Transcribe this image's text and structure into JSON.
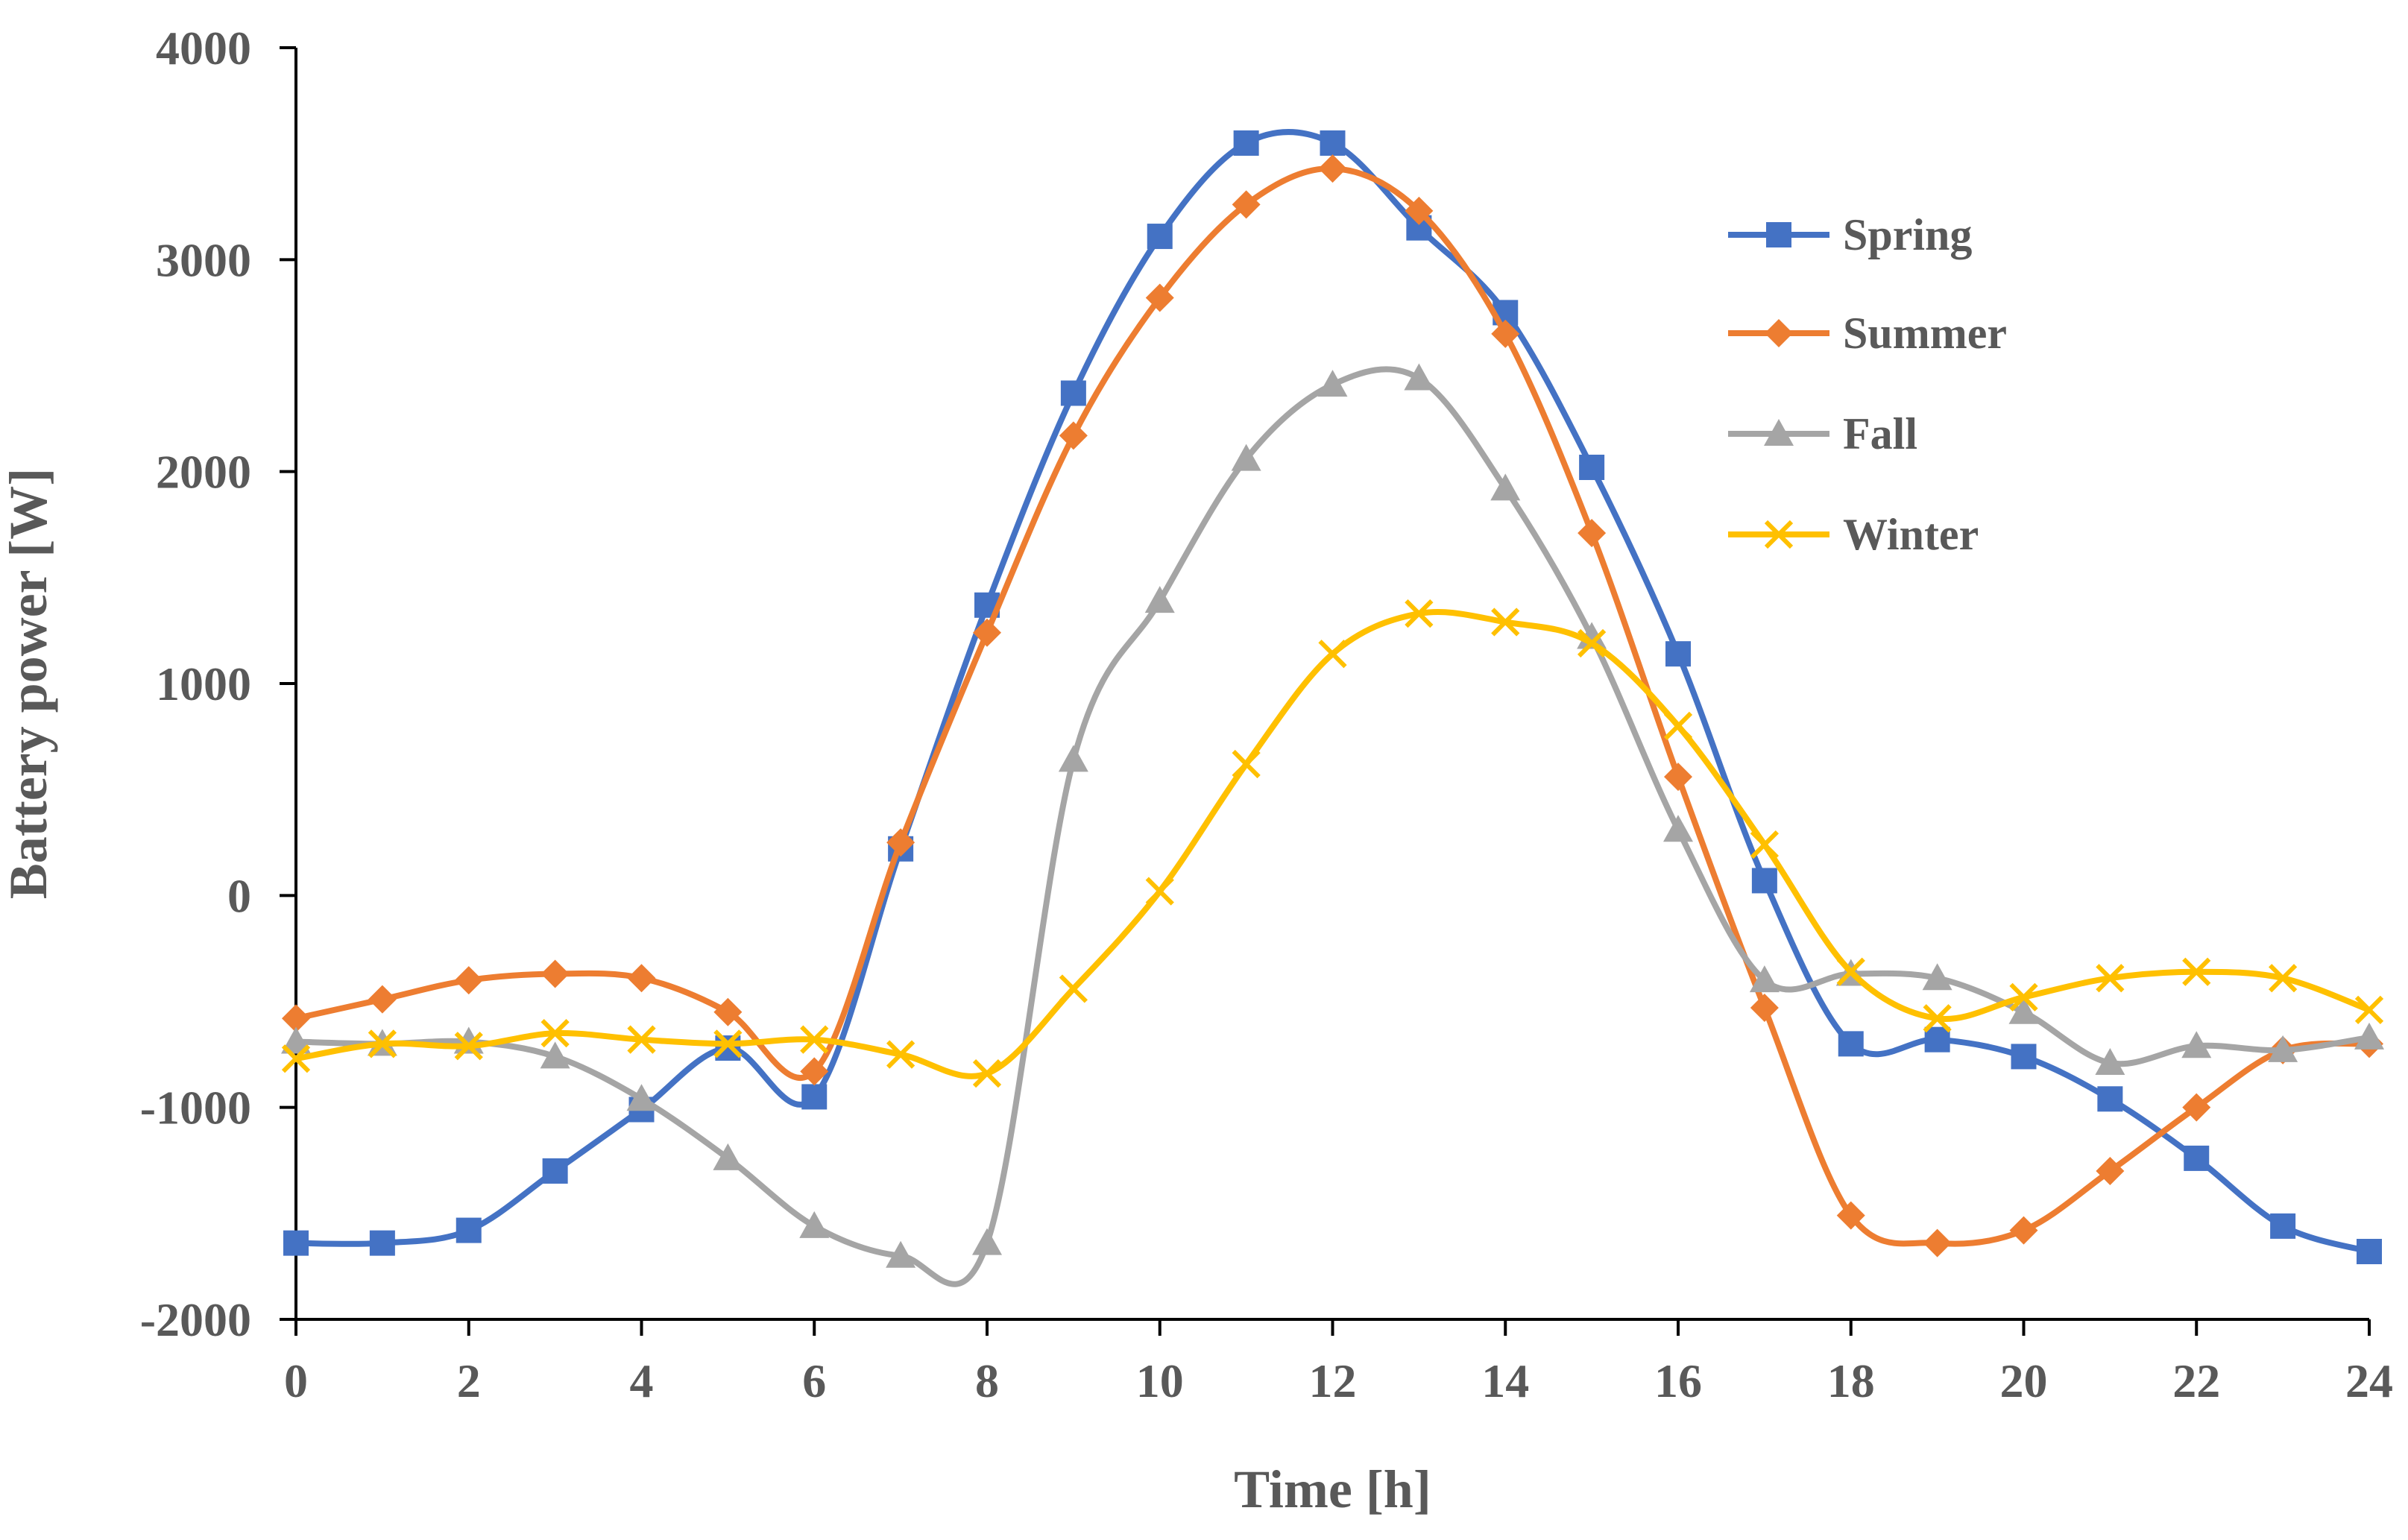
{
  "chart_data": {
    "type": "line",
    "title": "",
    "xlabel": "Time [h]",
    "ylabel": "Battery power [W]",
    "xlim": [
      0,
      24
    ],
    "ylim": [
      -2000,
      4000
    ],
    "x_ticks": [
      0,
      2,
      4,
      6,
      8,
      10,
      12,
      14,
      16,
      18,
      20,
      22,
      24
    ],
    "y_ticks": [
      -2000,
      -1000,
      0,
      1000,
      2000,
      3000,
      4000
    ],
    "grid": false,
    "legend_position": "right",
    "x": [
      0,
      1,
      2,
      3,
      4,
      5,
      6,
      7,
      8,
      9,
      10,
      11,
      12,
      13,
      14,
      15,
      16,
      17,
      18,
      19,
      20,
      21,
      22,
      23,
      24
    ],
    "series": [
      {
        "name": "Spring",
        "color": "#4472C4",
        "marker": "square",
        "values": [
          -1640,
          -1640,
          -1580,
          -1300,
          -1010,
          -720,
          -950,
          220,
          1370,
          2370,
          3110,
          3550,
          3550,
          3150,
          2750,
          2020,
          1140,
          70,
          -700,
          -680,
          -760,
          -960,
          -1240,
          -1560,
          -1680
        ]
      },
      {
        "name": "Summer",
        "color": "#ED7D31",
        "marker": "diamond",
        "values": [
          -580,
          -490,
          -400,
          -370,
          -390,
          -550,
          -830,
          250,
          1240,
          2170,
          2820,
          3260,
          3430,
          3230,
          2650,
          1710,
          560,
          -530,
          -1510,
          -1640,
          -1580,
          -1300,
          -1000,
          -730,
          -700
        ]
      },
      {
        "name": "Fall",
        "color": "#A5A5A5",
        "marker": "triangle",
        "values": [
          -690,
          -700,
          -690,
          -760,
          -960,
          -1240,
          -1560,
          -1700,
          -1640,
          640,
          1390,
          2060,
          2410,
          2440,
          1920,
          1220,
          310,
          -400,
          -370,
          -390,
          -550,
          -790,
          -710,
          -730,
          -670
        ]
      },
      {
        "name": "Winter",
        "color": "#FFC000",
        "marker": "x",
        "values": [
          -770,
          -700,
          -710,
          -650,
          -680,
          -700,
          -680,
          -750,
          -840,
          -440,
          20,
          620,
          1140,
          1330,
          1290,
          1190,
          800,
          240,
          -360,
          -580,
          -480,
          -390,
          -360,
          -390,
          -540
        ]
      }
    ]
  }
}
